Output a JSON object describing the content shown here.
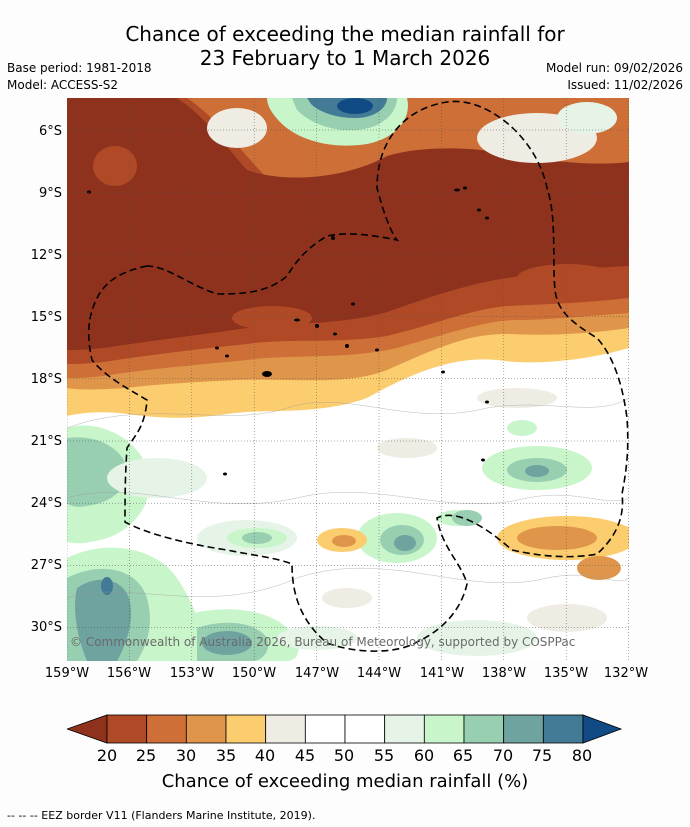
{
  "title": {
    "line1": "Chance of exceeding the median rainfall for",
    "line2": "23 February to 1 March 2026"
  },
  "meta": {
    "base_period": "Base period: 1981-2018",
    "model": "Model: ACCESS-S2",
    "model_run": "Model run: 09/02/2026",
    "issued": "Issued: 11/02/2026"
  },
  "map": {
    "copyright": "© Commonwealth of Australia 2026, Bureau of Meteorology, supported by COSPPac",
    "lat_labels": [
      "6°S",
      "9°S",
      "12°S",
      "15°S",
      "18°S",
      "21°S",
      "24°S",
      "27°S",
      "30°S"
    ],
    "lon_labels": [
      "159°W",
      "156°W",
      "153°W",
      "150°W",
      "147°W",
      "144°W",
      "141°W",
      "138°W",
      "135°W",
      "132°W"
    ]
  },
  "colorbar": {
    "colors": [
      "#8e321e",
      "#b04a26",
      "#cd6f37",
      "#e0964a",
      "#fccd6e",
      "#eeece3",
      "#ffffff",
      "#ffffff",
      "#e6f4e8",
      "#c8f5ca",
      "#98cfb1",
      "#6ea3a0",
      "#437a95",
      "#104b85"
    ],
    "ticks": [
      "20",
      "25",
      "30",
      "35",
      "40",
      "45",
      "50",
      "55",
      "60",
      "65",
      "70",
      "75",
      "80"
    ],
    "label": "Chance of exceeding median rainfall (%)"
  },
  "footer": "--  --  -- EEZ border V11 (Flanders Marine Institute, 2019)."
}
